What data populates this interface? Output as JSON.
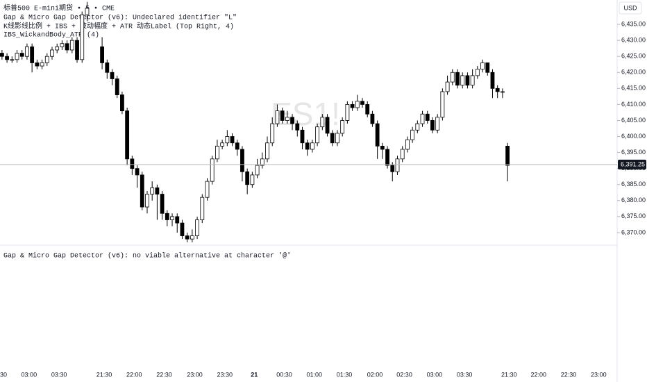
{
  "chart_data": {
    "type": "candlestick",
    "title": "标普500 E-mini期货 • 5 • CME",
    "indicators": [
      "Gap & Micro Gap Detector (v6): Undeclared identifier \"L\"",
      "K线影线比例 + IBS + 波动幅度 + ATR 动态Label (Top Right, 4)",
      "IBS_WickandBody_ATR (4)"
    ],
    "watermark": "ES1!",
    "currency": "USD",
    "last_price": {
      "value": 6391.25,
      "label": "6,391.25"
    },
    "error_message": "Gap & Micro Gap Detector (v6): no viable alternative at character '@'",
    "up_color": "#ffffff",
    "down_color": "#000000",
    "edge_color": "#000000",
    "x": [
      0,
      1,
      2,
      3,
      4,
      5,
      6,
      7,
      8,
      9,
      10,
      11,
      12,
      13,
      14,
      15,
      16,
      17,
      20,
      21,
      22,
      23,
      24,
      25,
      26,
      27,
      28,
      29,
      30,
      31,
      32,
      33,
      34,
      35,
      36,
      37,
      38,
      39,
      40,
      41,
      42,
      43,
      44,
      45,
      46,
      47,
      48,
      49,
      50,
      51,
      52,
      53,
      54,
      55,
      56,
      57,
      58,
      59,
      60,
      61,
      62,
      63,
      64,
      65,
      66,
      67,
      68,
      69,
      70,
      71,
      72,
      73,
      74,
      75,
      76,
      77,
      78,
      79,
      80,
      81,
      82,
      83,
      84,
      85,
      86,
      87,
      88,
      89,
      90,
      91,
      92,
      93,
      94,
      95,
      96,
      97,
      98,
      99,
      100,
      101
    ],
    "open": [
      6426,
      6425,
      6424,
      6424,
      6426,
      6425,
      6428,
      6423,
      6422,
      6423,
      6425,
      6427,
      6428,
      6429,
      6427,
      6430,
      6424,
      6438,
      6428,
      6423,
      6420,
      6418,
      6413,
      6408,
      6393,
      6390,
      6388,
      6378,
      6382,
      6384,
      6382,
      6376,
      6374,
      6375,
      6373,
      6369,
      6368,
      6369,
      6374,
      6381,
      6386,
      6393,
      6397,
      6398,
      6400,
      6398,
      6396,
      6389,
      6385,
      6388,
      6391,
      6393,
      6398,
      6404,
      6408,
      6405,
      6406,
      6404,
      6402,
      6398,
      6396,
      6398,
      6403,
      6406,
      6401,
      6398,
      6401,
      6405,
      6410,
      6409,
      6411,
      6410,
      6407,
      6404,
      6397,
      6396,
      6391,
      6389,
      6393,
      6396,
      6399,
      6402,
      6404,
      6407,
      6405,
      6402,
      6406,
      6414,
      6417,
      6420,
      6416,
      6419,
      6416,
      6419,
      6421,
      6423,
      6420,
      6415,
      6414,
      6397
    ],
    "high": [
      6427,
      6426,
      6425,
      6427,
      6427,
      6429,
      6429,
      6424,
      6424,
      6426,
      6428,
      6429,
      6430,
      6430,
      6431,
      6431,
      6439,
      6442,
      6431,
      6424,
      6421,
      6419,
      6414,
      6409,
      6394,
      6391,
      6389,
      6383,
      6386,
      6385,
      6383,
      6377,
      6376,
      6376,
      6374,
      6370,
      6371,
      6375,
      6382,
      6387,
      6394,
      6399,
      6399,
      6402,
      6401,
      6399,
      6397,
      6390,
      6389,
      6393,
      6395,
      6400,
      6406,
      6410,
      6409,
      6408,
      6407,
      6405,
      6403,
      6399,
      6399,
      6404,
      6407,
      6407,
      6402,
      6402,
      6406,
      6411,
      6411,
      6413,
      6412,
      6411,
      6408,
      6405,
      6398,
      6397,
      6392,
      6394,
      6397,
      6400,
      6403,
      6405,
      6408,
      6408,
      6406,
      6407,
      6415,
      6419,
      6421,
      6421,
      6420,
      6420,
      6421,
      6422,
      6424,
      6423,
      6421,
      6416,
      6415,
      6398
    ],
    "low": [
      6424,
      6423,
      6423,
      6423,
      6424,
      6424,
      6420,
      6421,
      6421,
      6422,
      6424,
      6426,
      6427,
      6426,
      6426,
      6423,
      6423,
      6436,
      6421,
      6418,
      6416,
      6412,
      6407,
      6391,
      6388,
      6384,
      6377,
      6376,
      6380,
      6374,
      6374,
      6372,
      6372,
      6370,
      6368,
      6367,
      6367,
      6368,
      6373,
      6380,
      6385,
      6392,
      6396,
      6397,
      6397,
      6394,
      6386,
      6382,
      6384,
      6387,
      6390,
      6392,
      6397,
      6403,
      6404,
      6404,
      6402,
      6400,
      6396,
      6394,
      6395,
      6397,
      6402,
      6400,
      6397,
      6397,
      6400,
      6404,
      6408,
      6408,
      6409,
      6406,
      6403,
      6393,
      6393,
      6390,
      6386,
      6388,
      6392,
      6395,
      6398,
      6401,
      6403,
      6404,
      6401,
      6401,
      6405,
      6413,
      6416,
      6415,
      6415,
      6415,
      6415,
      6418,
      6420,
      6419,
      6412,
      6412,
      6412,
      6386
    ],
    "close": [
      6425,
      6424,
      6424,
      6426,
      6425,
      6428,
      6423,
      6422,
      6423,
      6425,
      6427,
      6428,
      6429,
      6427,
      6430,
      6424,
      6438,
      6440,
      6423,
      6420,
      6418,
      6413,
      6408,
      6393,
      6390,
      6388,
      6378,
      6382,
      6384,
      6382,
      6376,
      6374,
      6375,
      6373,
      6369,
      6368,
      6369,
      6374,
      6381,
      6386,
      6393,
      6397,
      6398,
      6400,
      6398,
      6396,
      6389,
      6385,
      6388,
      6391,
      6393,
      6398,
      6404,
      6408,
      6405,
      6406,
      6404,
      6402,
      6398,
      6396,
      6398,
      6403,
      6406,
      6401,
      6398,
      6401,
      6405,
      6410,
      6409,
      6411,
      6410,
      6407,
      6404,
      6397,
      6396,
      6391,
      6389,
      6393,
      6396,
      6399,
      6402,
      6404,
      6407,
      6405,
      6402,
      6406,
      6414,
      6417,
      6420,
      6416,
      6419,
      6416,
      6419,
      6421,
      6423,
      6420,
      6415,
      6414,
      6414,
      6391
    ],
    "xlim": [
      -0.4,
      122.9
    ],
    "xticks": [
      {
        "value": 0.3,
        "label": "30"
      },
      {
        "value": 5.4,
        "label": "03:00"
      },
      {
        "value": 11.4,
        "label": "03:30"
      },
      {
        "value": 20.4,
        "label": "21:30"
      },
      {
        "value": 26.4,
        "label": "22:00"
      },
      {
        "value": 32.4,
        "label": "22:30"
      },
      {
        "value": 38.5,
        "label": "23:00"
      },
      {
        "value": 44.5,
        "label": "23:30"
      },
      {
        "value": 50.4,
        "label": "21"
      },
      {
        "value": 56.4,
        "label": "00:30"
      },
      {
        "value": 62.4,
        "label": "01:00"
      },
      {
        "value": 68.4,
        "label": "01:30"
      },
      {
        "value": 74.5,
        "label": "02:00"
      },
      {
        "value": 80.4,
        "label": "02:30"
      },
      {
        "value": 86.4,
        "label": "03:00"
      },
      {
        "value": 92.4,
        "label": "03:30"
      },
      {
        "value": 101.3,
        "label": "21:30"
      },
      {
        "value": 107.2,
        "label": "22:00"
      },
      {
        "value": 113.2,
        "label": "22:30"
      },
      {
        "value": 119.2,
        "label": "23:00"
      }
    ],
    "ylim": [
      6366.3,
      6442.6
    ],
    "yticks": [
      {
        "value": 6370,
        "label": "6,370.00"
      },
      {
        "value": 6375,
        "label": "6,375.00"
      },
      {
        "value": 6380,
        "label": "6,380.00"
      },
      {
        "value": 6385,
        "label": "6,385.00"
      },
      {
        "value": 6390,
        "label": "6,390.00"
      },
      {
        "value": 6395,
        "label": "6,395.00"
      },
      {
        "value": 6400,
        "label": "6,400.00"
      },
      {
        "value": 6405,
        "label": "6,405.00"
      },
      {
        "value": 6410,
        "label": "6,410.00"
      },
      {
        "value": 6415,
        "label": "6,415.00"
      },
      {
        "value": 6420,
        "label": "6,420.00"
      },
      {
        "value": 6425,
        "label": "6,425.00"
      },
      {
        "value": 6430,
        "label": "6,430.00"
      },
      {
        "value": 6435,
        "label": "6,435.00"
      }
    ]
  }
}
